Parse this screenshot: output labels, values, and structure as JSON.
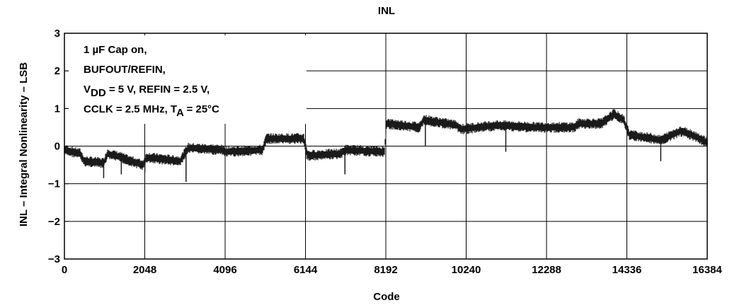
{
  "chart_data": {
    "type": "line",
    "title": "INL",
    "xlabel": "Code",
    "ylabel": "INL – Integral Nonlinearity – LSB",
    "xlim": [
      0,
      16384
    ],
    "ylim": [
      -3,
      3
    ],
    "x_ticks": [
      0,
      2048,
      4096,
      6144,
      8192,
      10240,
      12288,
      14336,
      16384
    ],
    "x_tick_labels": [
      "0",
      "2048",
      "4096",
      "6144",
      "8192",
      "10240",
      "12288",
      "14336",
      "16384"
    ],
    "y_ticks": [
      3,
      2,
      1,
      0,
      -1,
      -2,
      -3
    ],
    "y_tick_labels": [
      "3",
      "2",
      "1",
      "0",
      "−1",
      "−2",
      "−3"
    ],
    "grid": true,
    "annotation": {
      "line1": "1 µF Cap on,",
      "line2": "BUFOUT/REFIN,",
      "line3_a": "V",
      "line3_sub": "DD",
      "line3_b": " = 5 V, REFIN = 2.5 V,",
      "line4_a": "CCLK = 2.5 MHz, T",
      "line4_sub": "A",
      "line4_b": " = 25°C"
    },
    "series": [
      {
        "color": "#1a1a1a",
        "band_halfwidth": 0.12,
        "x": [
          0,
          400,
          500,
          1000,
          1100,
          1450,
          1550,
          2000,
          2100,
          2950,
          3150,
          4000,
          4100,
          5050,
          5150,
          6100,
          6200,
          7050,
          7150,
          8160,
          8200,
          9050,
          9150,
          10000,
          10100,
          11000,
          11100,
          12000,
          12100,
          13000,
          13100,
          13700,
          14000,
          14250,
          14400,
          15000,
          15200,
          15700,
          16000,
          16384
        ],
        "y": [
          -0.1,
          -0.2,
          -0.4,
          -0.45,
          -0.2,
          -0.3,
          -0.35,
          -0.5,
          -0.3,
          -0.4,
          -0.05,
          -0.1,
          -0.15,
          -0.1,
          0.2,
          0.2,
          -0.25,
          -0.2,
          -0.1,
          -0.15,
          0.6,
          0.5,
          0.7,
          0.55,
          0.45,
          0.55,
          0.55,
          0.5,
          0.5,
          0.5,
          0.6,
          0.6,
          0.85,
          0.7,
          0.3,
          0.2,
          0.15,
          0.4,
          0.3,
          0.1
        ]
      }
    ],
    "spikes": [
      {
        "x": 1000,
        "y": -0.85
      },
      {
        "x": 1450,
        "y": -0.75
      },
      {
        "x": 2050,
        "y": -0.7
      },
      {
        "x": 3100,
        "y": -0.95
      },
      {
        "x": 6150,
        "y": -0.35
      },
      {
        "x": 7150,
        "y": -0.75
      },
      {
        "x": 9200,
        "y": 0.0
      },
      {
        "x": 11250,
        "y": -0.15
      },
      {
        "x": 15200,
        "y": -0.4
      }
    ]
  }
}
